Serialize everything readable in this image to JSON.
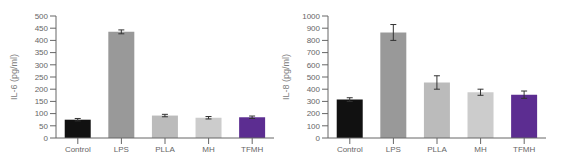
{
  "chart_data": [
    {
      "type": "bar",
      "categories": [
        "Control",
        "LPS",
        "PLLA",
        "MH",
        "TFMH"
      ],
      "values": [
        75,
        435,
        92,
        83,
        85
      ],
      "errors": [
        5,
        8,
        5,
        5,
        5
      ],
      "ylabel": "IL-6 (pg/ml)",
      "ylim": [
        0,
        500
      ],
      "yticks": [
        0,
        50,
        100,
        150,
        200,
        250,
        300,
        350,
        400,
        450,
        500
      ],
      "colors": [
        "#111111",
        "#999999",
        "#bbbbbb",
        "#cccccc",
        "#5c2d91"
      ]
    },
    {
      "type": "bar",
      "categories": [
        "Control",
        "LPS",
        "PLLA",
        "MH",
        "TFMH"
      ],
      "values": [
        315,
        865,
        455,
        375,
        355
      ],
      "errors": [
        15,
        65,
        55,
        25,
        30
      ],
      "ylabel": "IL-8 (pg/ml)",
      "ylim": [
        0,
        1000
      ],
      "yticks": [
        0,
        100,
        200,
        300,
        400,
        500,
        600,
        700,
        800,
        900,
        1000
      ],
      "colors": [
        "#111111",
        "#999999",
        "#bbbbbb",
        "#cccccc",
        "#5c2d91"
      ]
    }
  ]
}
